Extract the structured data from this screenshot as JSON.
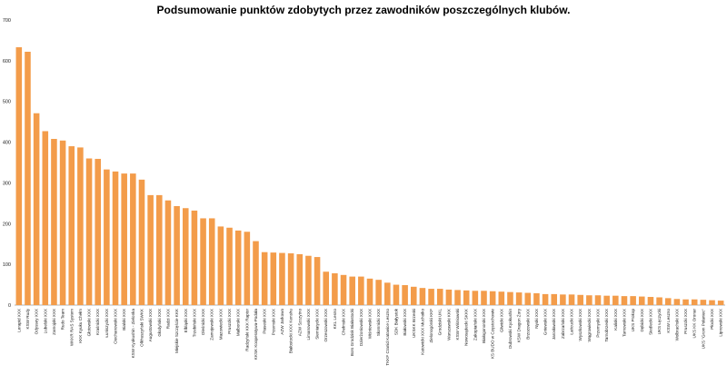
{
  "chart_data": {
    "type": "bar",
    "title": "Podsumowanie punktów zdobytych przez zawodników poszczególnych klubów.",
    "xlabel": "",
    "ylabel": "",
    "ylim": [
      0,
      700
    ],
    "yticks": [
      0,
      100,
      200,
      300,
      400,
      500,
      600,
      700
    ],
    "grid": false,
    "legend": "none",
    "bar_color": "#f39c4a",
    "categories": [
      "Lerapid XXX",
      "KSW Rudy",
      "Odyssey XXX",
      "Lubelski XXX",
      "Zamojski XXX",
      "Rudo Team",
      "WKKR RAS System",
      "KKK Kyuku Chełm",
      "Głotowski XXX",
      "Kraśnicki XXX",
      "Łuniszycki XXX",
      "Ciechanowski XXX",
      "Bialski XXX",
      "KSW Kyokushin - Zielonka",
      "Olkhuszyński SWKK",
      "Augustowski XXX",
      "Głodyński XXX",
      "Radzi XXX",
      "Miejskie Szczęście KKK",
      "Elbląski XXX",
      "Trzebiński XXX",
      "Oleśnicki XXX",
      "Zamojewski XXX",
      "Mazowiecki XXX",
      "Pruszcki XXX",
      "Malborski XXX",
      "Radzyński KKK Raptor",
      "KKSK Kooperatywa-Podała",
      "Piaseski XXX",
      "Przemski XXX",
      "AZW Jarkowo",
      "Białostocki XXX Kenshu",
      "AZW Szczytno",
      "Limanowski XXX",
      "Siemiatycki XXX",
      "Orzeszowski XXX",
      "KKL Lesno",
      "Chełmski XXX",
      "Bors Grodzisk Białostocki",
      "Dzierżoniowski XXX",
      "Wiśniowski XXX",
      "Słomnicki XXX",
      "TKKF Cranid Katowice Leszno",
      "SDK Białystok",
      "Białowski XXX",
      "UKSKK Brzeski",
      "Katowicki XXX Muchoiko",
      "Zielonogórski KKF",
      "Grodziski UKL",
      "Warszawski KKK",
      "KSW Wiśniowski",
      "Nowosądecki SKKK",
      "Zakopiański XXX",
      "Białogonorski XXX",
      "KS BUDO w Częstochowie",
      "Gliwicki XXX",
      "Dubrowski Kyokushin",
      "KSW Dragon Żory",
      "Brzozowski XXX",
      "Nyski XXX",
      "Gniewski XXX",
      "Jarosławski XXX",
      "Zabrzański XXX",
      "Łańcucki XXX",
      "Wyszkowski XXX",
      "Wągrowiecki XXX",
      "Przemyski XXX",
      "Tarnobrzeski XXX",
      "Kaliski XXX",
      "Tarnowski XXX",
      "UKS Prokop",
      "Dębicki XXX",
      "Siedlecki XXX",
      "UKS Łęczycki",
      "KSW Leszno",
      "Wolbrachski XXX",
      "Pruszcki XXX",
      "UKS KK Oronar",
      "UKS \"Grom Połaniec\"",
      "Płocki XXX",
      "Lipnowski XXX"
    ],
    "values": [
      633,
      622,
      471,
      427,
      408,
      404,
      390,
      387,
      360,
      359,
      333,
      328,
      323,
      323,
      308,
      270,
      270,
      257,
      243,
      238,
      232,
      213,
      213,
      193,
      190,
      183,
      180,
      157,
      130,
      129,
      128,
      127,
      125,
      121,
      118,
      82,
      78,
      74,
      70,
      70,
      65,
      62,
      55,
      50,
      49,
      45,
      42,
      40,
      40,
      38,
      37,
      36,
      35,
      35,
      34,
      33,
      32,
      31,
      30,
      29,
      27,
      27,
      26,
      26,
      25,
      24,
      24,
      23,
      23,
      22,
      22,
      21,
      20,
      19,
      17,
      15,
      14,
      14,
      13,
      12,
      11
    ]
  }
}
